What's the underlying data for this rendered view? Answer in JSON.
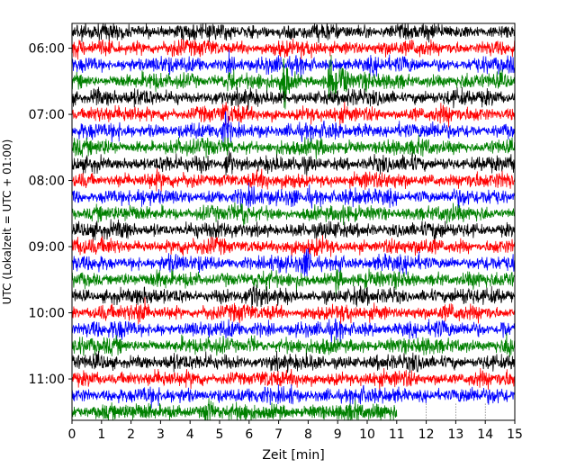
{
  "chart_data": {
    "type": "line",
    "subtype": "helicorder",
    "xlabel": "Zeit  [min]",
    "ylabel": "UTC (Lokalzeit = UTC + 01:00)",
    "xlim": [
      0,
      15
    ],
    "x_ticks": [
      "0",
      "1",
      "2",
      "3",
      "4",
      "5",
      "6",
      "7",
      "8",
      "9",
      "10",
      "11",
      "12",
      "13",
      "14",
      "15"
    ],
    "y_tick_labels": [
      "06:00",
      "07:00",
      "08:00",
      "09:00",
      "10:00",
      "11:00"
    ],
    "trace_colors": [
      "#000000",
      "#ff0000",
      "#0000ff",
      "#008000"
    ],
    "traces_per_hour": 4,
    "minutes_per_trace": 15,
    "start_time": "05:45",
    "trace_count": 24,
    "last_trace_end_min": 11,
    "events": [
      {
        "trace": 2,
        "minute": 5.3,
        "amplitude": 1.6
      },
      {
        "trace": 3,
        "minute": 5.4,
        "amplitude": 2.5
      },
      {
        "trace": 3,
        "minute": 7.2,
        "amplitude": 4.5
      },
      {
        "trace": 3,
        "minute": 8.8,
        "amplitude": 5.0
      },
      {
        "trace": 3,
        "minute": 9.2,
        "amplitude": 3.5
      },
      {
        "trace": 4,
        "minute": 0.8,
        "amplitude": 2.0
      },
      {
        "trace": 5,
        "minute": 5.2,
        "amplitude": 2.0
      },
      {
        "trace": 6,
        "minute": 5.2,
        "amplitude": 2.5
      },
      {
        "trace": 7,
        "minute": 5.3,
        "amplitude": 2.0
      },
      {
        "trace": 8,
        "minute": 5.3,
        "amplitude": 3.0
      },
      {
        "trace": 10,
        "minute": 7.5,
        "amplitude": 2.0
      },
      {
        "trace": 10,
        "minute": 8.0,
        "amplitude": 2.0
      },
      {
        "trace": 11,
        "minute": 5.8,
        "amplitude": 1.8
      },
      {
        "trace": 14,
        "minute": 7.9,
        "amplitude": 2.2
      },
      {
        "trace": 14,
        "minute": 9.0,
        "amplitude": 2.0
      },
      {
        "trace": 15,
        "minute": 9.0,
        "amplitude": 2.0
      },
      {
        "trace": 16,
        "minute": 6.2,
        "amplitude": 1.8
      },
      {
        "trace": 17,
        "minute": 2.4,
        "amplitude": 2.0
      },
      {
        "trace": 18,
        "minute": 1.5,
        "amplitude": 1.8
      },
      {
        "trace": 18,
        "minute": 14.6,
        "amplitude": 2.0
      },
      {
        "trace": 19,
        "minute": 6.1,
        "amplitude": 1.6
      },
      {
        "trace": 19,
        "minute": 14.8,
        "amplitude": 2.5
      },
      {
        "trace": 20,
        "minute": 5.2,
        "amplitude": 1.5
      },
      {
        "trace": 22,
        "minute": 7.4,
        "amplitude": 1.5
      },
      {
        "trace": 23,
        "minute": 4.6,
        "amplitude": 2.2
      },
      {
        "trace": 23,
        "minute": 10.9,
        "amplitude": 1.5
      }
    ]
  }
}
